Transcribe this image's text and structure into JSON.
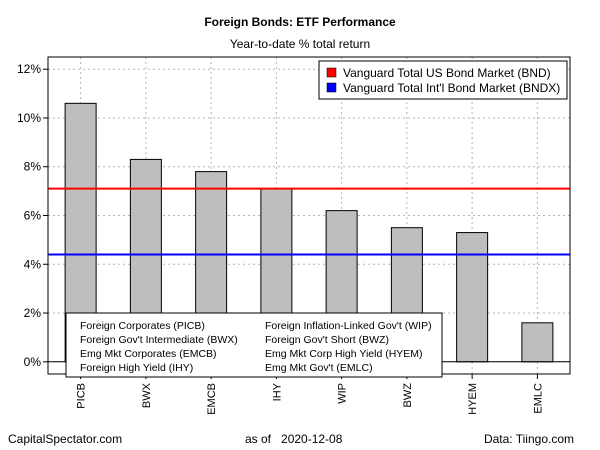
{
  "chart_data": {
    "type": "bar",
    "title": "Foreign Bonds: ETF Performance",
    "subtitle": "Year-to-date % total return",
    "categories": [
      "PICB",
      "BWX",
      "EMCB",
      "IHY",
      "WIP",
      "BWZ",
      "HYEM",
      "EMLC"
    ],
    "values": [
      10.6,
      8.3,
      7.8,
      7.1,
      6.2,
      5.5,
      5.3,
      1.6
    ],
    "bar_color": "#bebebe",
    "ylim": [
      -0.5,
      12.5
    ],
    "yticks": [
      0,
      2,
      4,
      6,
      8,
      10,
      12
    ],
    "ytick_labels": [
      "0%",
      "2%",
      "4%",
      "6%",
      "8%",
      "10%",
      "12%"
    ],
    "grid": true,
    "reference_lines": [
      {
        "name": "Vanguard Total US Bond Market (BND)",
        "value": 7.1,
        "color": "#ff0000"
      },
      {
        "name": "Vanguard Total Int'l Bond Market (BNDX)",
        "value": 4.4,
        "color": "#0000ff"
      }
    ],
    "legend_position": "top-right",
    "category_key": [
      "Foreign Corporates (PICB)",
      "Foreign Gov't Intermediate (BWX)",
      "Emg Mkt Corporates (EMCB)",
      "Foreign High Yield (IHY)",
      "Foreign Inflation-Linked Gov't (WIP)",
      "Foreign Gov't Short (BWZ)",
      "Emg Mkt Corp High Yield (HYEM)",
      "Emg Mkt Gov't (EMLC)"
    ]
  },
  "footer": {
    "left": "CapitalSpectator.com",
    "center": "as of   2020-12-08",
    "right": "Data: Tiingo.com"
  }
}
